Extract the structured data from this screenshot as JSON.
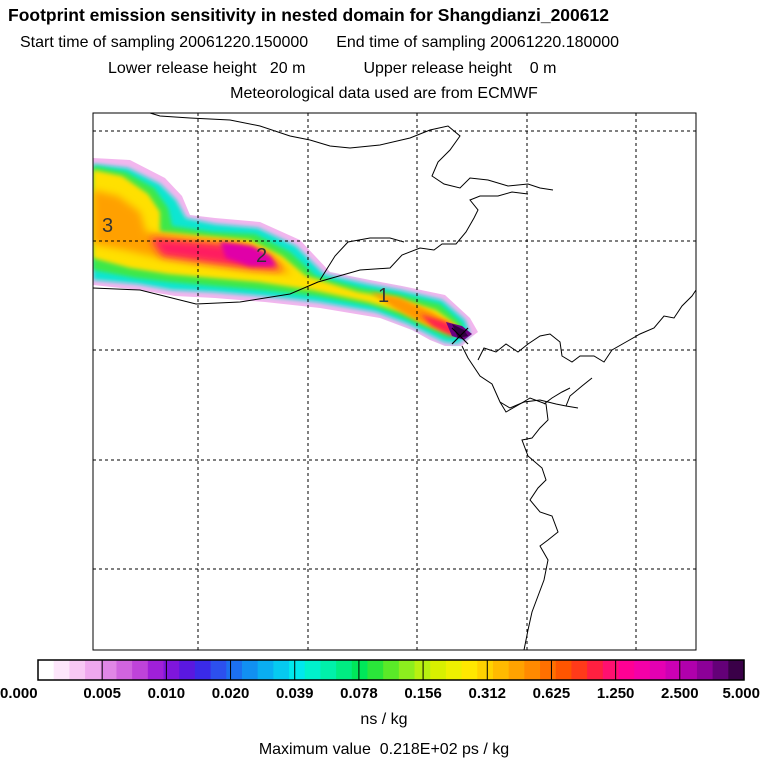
{
  "header": {
    "title": "Footprint emission sensitivity in nested domain for Shangdianzi_200612",
    "start_label": "Start time of sampling 20061220.150000",
    "end_label": "End time of sampling 20061220.180000",
    "lower_label": "Lower release height   20 m",
    "upper_label": "Upper release height    0 m",
    "met_label": "Meteorological data used are from ECMWF"
  },
  "chart_data": {
    "type": "heatmap",
    "title": "Footprint emission sensitivity in nested domain for Shangdianzi_200612",
    "plume_labels": [
      "3",
      "2",
      "1"
    ],
    "colorbar": {
      "tick_labels": [
        "0.000",
        "0.005",
        "0.010",
        "0.020",
        "0.039",
        "0.078",
        "0.156",
        "0.312",
        "0.625",
        "1.250",
        "2.500",
        "5.000"
      ],
      "tick_values": [
        0.0,
        0.005,
        0.01,
        0.02,
        0.039,
        0.078,
        0.156,
        0.312,
        0.625,
        1.25,
        2.5,
        5.0
      ],
      "colors": [
        "#ffffff",
        "#fde6fb",
        "#f8c8f4",
        "#efa8ee",
        "#e186e6",
        "#d064df",
        "#bf43da",
        "#a020d8",
        "#7f16dc",
        "#5a18e0",
        "#3a2ae8",
        "#2c50ee",
        "#1c70f0",
        "#1190f2",
        "#0aaef2",
        "#06caf0",
        "#00e8ee",
        "#00f2cc",
        "#00f0aa",
        "#00ec82",
        "#00e85a",
        "#2ae63a",
        "#5aea28",
        "#8cee1e",
        "#b8f010",
        "#d8f000",
        "#eef000",
        "#ffe800",
        "#ffd200",
        "#ffba00",
        "#ffa200",
        "#ff8a00",
        "#ff7000",
        "#ff5500",
        "#ff3a1a",
        "#ff2040",
        "#ff1070",
        "#ff0094",
        "#f400a8",
        "#e400b2",
        "#cc00b4",
        "#b000ac",
        "#8c0098",
        "#640078",
        "#3a0048"
      ],
      "unit": "ns / kg"
    },
    "max_value_label": "Maximum value  0.218E+02 ps / kg"
  }
}
